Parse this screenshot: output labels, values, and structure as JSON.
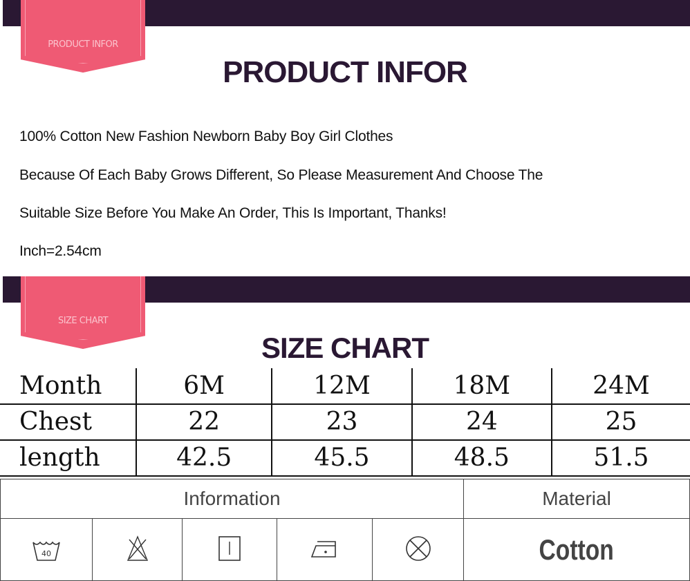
{
  "product_info": {
    "ribbon": "PRODUCT INFOR",
    "title": "PRODUCT INFOR",
    "lines": [
      "100% Cotton New Fashion Newborn Baby  Boy Girl Clothes",
      "Because Of Each Baby Grows Different, So Please Measurement And Choose The",
      "Suitable Size Before You Make An Order, This Is Important, Thanks!",
      "Inch=2.54cm"
    ]
  },
  "size_chart": {
    "ribbon": "SIZE CHART",
    "title": "SIZE CHART",
    "rows": [
      [
        "Month",
        "6M",
        "12M",
        "18M",
        "24M"
      ],
      [
        "Chest",
        "22",
        "23",
        "24",
        "25"
      ],
      [
        "length",
        "42.5",
        "45.5",
        "48.5",
        "51.5"
      ]
    ]
  },
  "care": {
    "information_label": "Information",
    "material_label": "Material",
    "material_value": "Cotton",
    "wash_temp": "40",
    "icons": [
      "hand-wash-40-icon",
      "do-not-bleach-icon",
      "line-dry-icon",
      "iron-low-icon",
      "do-not-dry-clean-icon"
    ]
  },
  "colors": {
    "bar": "#2a1833",
    "ribbon": "#ef5a74"
  }
}
